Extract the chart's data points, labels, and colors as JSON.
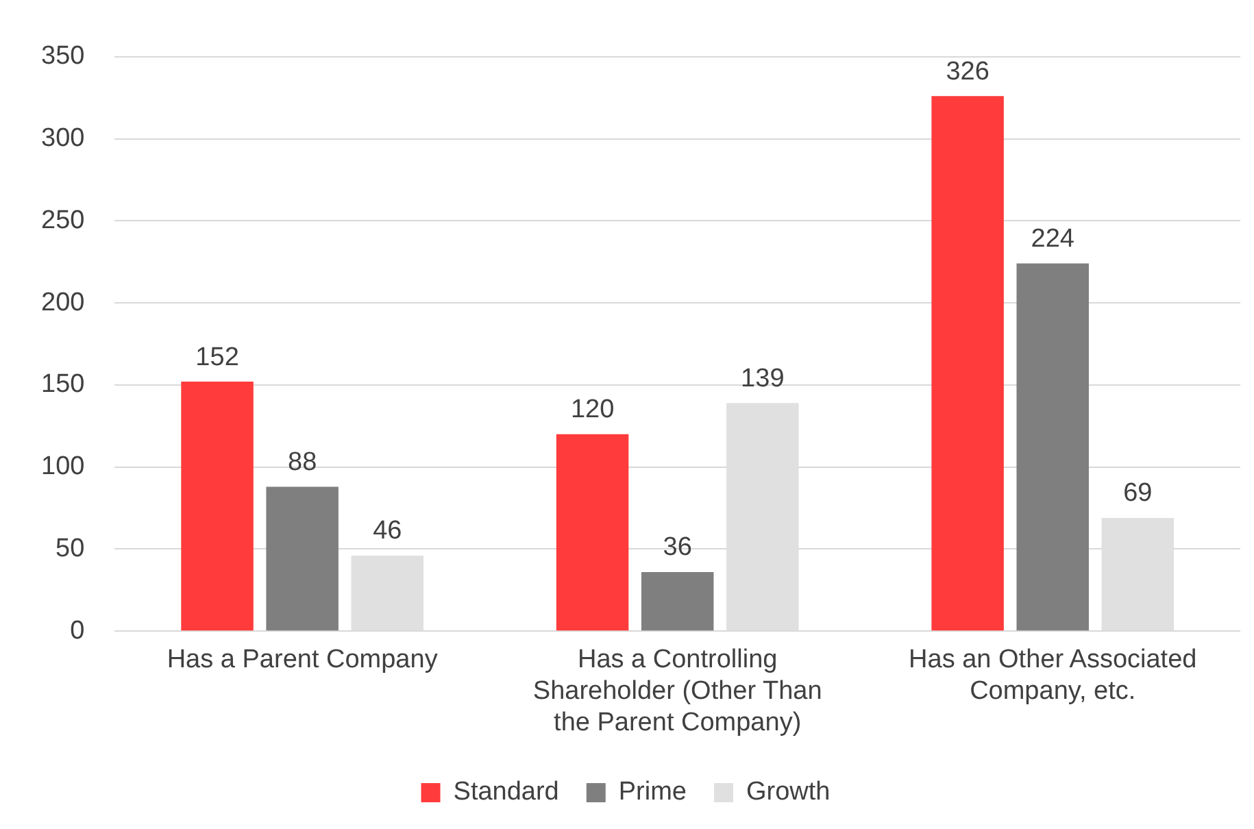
{
  "chart_data": {
    "type": "bar",
    "categories": [
      "Has a Parent Company",
      "Has a Controlling Shareholder (Other Than the Parent Company)",
      "Has an Other Associated Company, etc."
    ],
    "series": [
      {
        "name": "Standard",
        "color": "#ff3b3b",
        "values": [
          152,
          120,
          326
        ]
      },
      {
        "name": "Prime",
        "color": "#7f7f7f",
        "values": [
          88,
          36,
          224
        ]
      },
      {
        "name": "Growth",
        "color": "#e0e0e0",
        "values": [
          46,
          139,
          69
        ]
      }
    ],
    "ylim": [
      0,
      350
    ],
    "yticks": [
      0,
      50,
      100,
      150,
      200,
      250,
      300,
      350
    ],
    "grid": "y",
    "legend": "bottom",
    "data_labels": true
  }
}
